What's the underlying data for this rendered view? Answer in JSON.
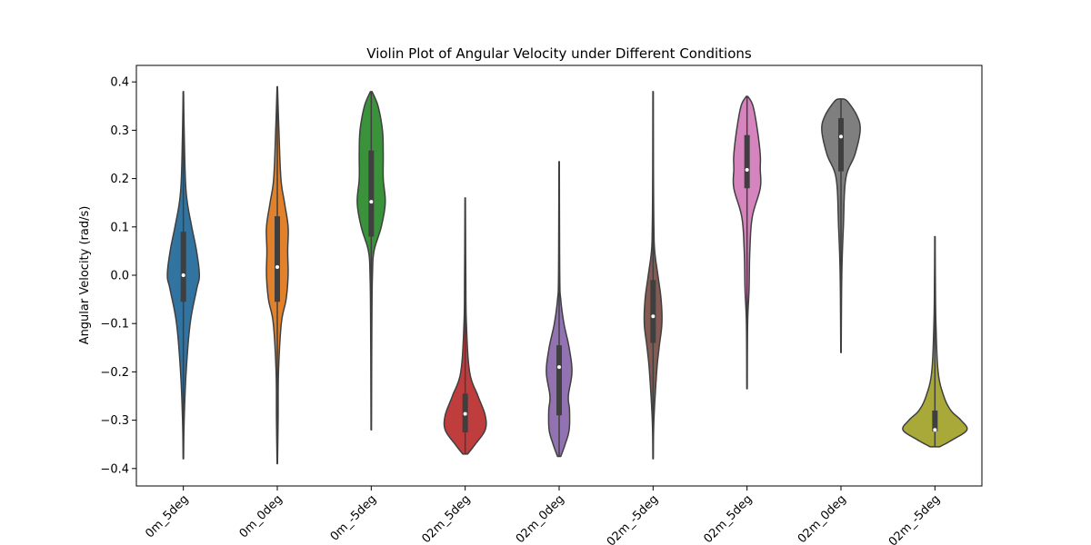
{
  "chart_data": {
    "type": "violin",
    "title": "Violin Plot of Angular Velocity under Different Conditions",
    "xlabel": "",
    "ylabel": "Angular Velocity (rad/s)",
    "ylim": [
      -0.43,
      0.43
    ],
    "yticks": [
      -0.4,
      -0.3,
      -0.2,
      -0.1,
      0.0,
      0.1,
      0.2,
      0.3,
      0.4
    ],
    "ytick_labels": [
      "−0.4",
      "−0.3",
      "−0.2",
      "−0.1",
      "0.0",
      "0.1",
      "0.2",
      "0.3",
      "0.4"
    ],
    "grid": false,
    "legend": "none",
    "categories": [
      "0m_5deg",
      "0m_0deg",
      "0m_-5deg",
      "02m_5deg",
      "02m_0deg",
      "02m_-5deg",
      "02m_5deg",
      "02m_0deg",
      "02m_-5deg"
    ],
    "violins": [
      {
        "color": "#3274a1",
        "min": -0.38,
        "max": 0.38,
        "q1": -0.055,
        "median": 0.0,
        "q3": 0.09,
        "profile": [
          [
            -0.38,
            0.005
          ],
          [
            -0.3,
            0.02
          ],
          [
            -0.2,
            0.07
          ],
          [
            -0.1,
            0.17
          ],
          [
            -0.03,
            0.33
          ],
          [
            0.0,
            0.4
          ],
          [
            0.05,
            0.33
          ],
          [
            0.1,
            0.21
          ],
          [
            0.15,
            0.1
          ],
          [
            0.2,
            0.05
          ],
          [
            0.3,
            0.02
          ],
          [
            0.38,
            0.005
          ]
        ]
      },
      {
        "color": "#e1812c",
        "min": -0.39,
        "max": 0.39,
        "q1": -0.055,
        "median": 0.017,
        "q3": 0.122,
        "profile": [
          [
            -0.39,
            0.005
          ],
          [
            -0.3,
            0.02
          ],
          [
            -0.2,
            0.03
          ],
          [
            -0.1,
            0.1
          ],
          [
            -0.05,
            0.22
          ],
          [
            0.0,
            0.27
          ],
          [
            0.05,
            0.26
          ],
          [
            0.1,
            0.27
          ],
          [
            0.15,
            0.18
          ],
          [
            0.2,
            0.09
          ],
          [
            0.3,
            0.04
          ],
          [
            0.39,
            0.005
          ]
        ]
      },
      {
        "color": "#3a923a",
        "min": -0.32,
        "max": 0.38,
        "q1": 0.08,
        "median": 0.152,
        "q3": 0.258,
        "profile": [
          [
            -0.32,
            0.005
          ],
          [
            -0.1,
            0.015
          ],
          [
            0.0,
            0.03
          ],
          [
            0.05,
            0.07
          ],
          [
            0.1,
            0.25
          ],
          [
            0.15,
            0.35
          ],
          [
            0.2,
            0.3
          ],
          [
            0.25,
            0.3
          ],
          [
            0.3,
            0.28
          ],
          [
            0.35,
            0.17
          ],
          [
            0.38,
            0.02
          ]
        ]
      },
      {
        "color": "#c03d3e",
        "min": -0.37,
        "max": 0.16,
        "q1": -0.325,
        "median": -0.287,
        "q3": -0.245,
        "profile": [
          [
            -0.37,
            0.06
          ],
          [
            -0.35,
            0.25
          ],
          [
            -0.32,
            0.5
          ],
          [
            -0.29,
            0.5
          ],
          [
            -0.25,
            0.32
          ],
          [
            -0.2,
            0.11
          ],
          [
            -0.1,
            0.03
          ],
          [
            0.0,
            0.015
          ],
          [
            0.16,
            0.005
          ]
        ]
      },
      {
        "color": "#9372b2",
        "min": -0.375,
        "max": 0.235,
        "q1": -0.29,
        "median": -0.19,
        "q3": -0.145,
        "profile": [
          [
            -0.375,
            0.04
          ],
          [
            -0.35,
            0.15
          ],
          [
            -0.32,
            0.25
          ],
          [
            -0.28,
            0.26
          ],
          [
            -0.25,
            0.23
          ],
          [
            -0.2,
            0.32
          ],
          [
            -0.15,
            0.25
          ],
          [
            -0.1,
            0.12
          ],
          [
            -0.05,
            0.04
          ],
          [
            0.0,
            0.015
          ],
          [
            0.235,
            0.005
          ]
        ]
      },
      {
        "color": "#845b53",
        "min": -0.38,
        "max": 0.38,
        "q1": -0.14,
        "median": -0.085,
        "q3": -0.01,
        "profile": [
          [
            -0.38,
            0.005
          ],
          [
            -0.3,
            0.02
          ],
          [
            -0.2,
            0.09
          ],
          [
            -0.15,
            0.15
          ],
          [
            -0.1,
            0.22
          ],
          [
            -0.05,
            0.2
          ],
          [
            0.0,
            0.12
          ],
          [
            0.05,
            0.04
          ],
          [
            0.1,
            0.02
          ],
          [
            0.2,
            0.01
          ],
          [
            0.38,
            0.005
          ]
        ]
      },
      {
        "color": "#d684bd",
        "min": -0.235,
        "max": 0.37,
        "q1": 0.18,
        "median": 0.218,
        "q3": 0.29,
        "profile": [
          [
            -0.235,
            0.005
          ],
          [
            -0.1,
            0.015
          ],
          [
            -0.03,
            0.05
          ],
          [
            0.05,
            0.07
          ],
          [
            0.12,
            0.13
          ],
          [
            0.18,
            0.33
          ],
          [
            0.22,
            0.33
          ],
          [
            0.25,
            0.33
          ],
          [
            0.3,
            0.26
          ],
          [
            0.35,
            0.15
          ],
          [
            0.37,
            0.02
          ]
        ]
      },
      {
        "color": "#7f7f7f",
        "min": -0.16,
        "max": 0.365,
        "q1": 0.215,
        "median": 0.287,
        "q3": 0.325,
        "profile": [
          [
            -0.16,
            0.005
          ],
          [
            0.0,
            0.02
          ],
          [
            0.1,
            0.06
          ],
          [
            0.2,
            0.12
          ],
          [
            0.25,
            0.35
          ],
          [
            0.3,
            0.48
          ],
          [
            0.33,
            0.4
          ],
          [
            0.36,
            0.16
          ],
          [
            0.365,
            0.03
          ]
        ]
      },
      {
        "color": "#a9a93a",
        "min": -0.355,
        "max": 0.08,
        "q1": -0.323,
        "median": -0.32,
        "q3": -0.28,
        "profile": [
          [
            -0.355,
            0.12
          ],
          [
            -0.34,
            0.45
          ],
          [
            -0.32,
            0.8
          ],
          [
            -0.3,
            0.65
          ],
          [
            -0.28,
            0.4
          ],
          [
            -0.25,
            0.22
          ],
          [
            -0.2,
            0.08
          ],
          [
            -0.1,
            0.025
          ],
          [
            0.0,
            0.01
          ],
          [
            0.08,
            0.005
          ]
        ]
      }
    ]
  }
}
